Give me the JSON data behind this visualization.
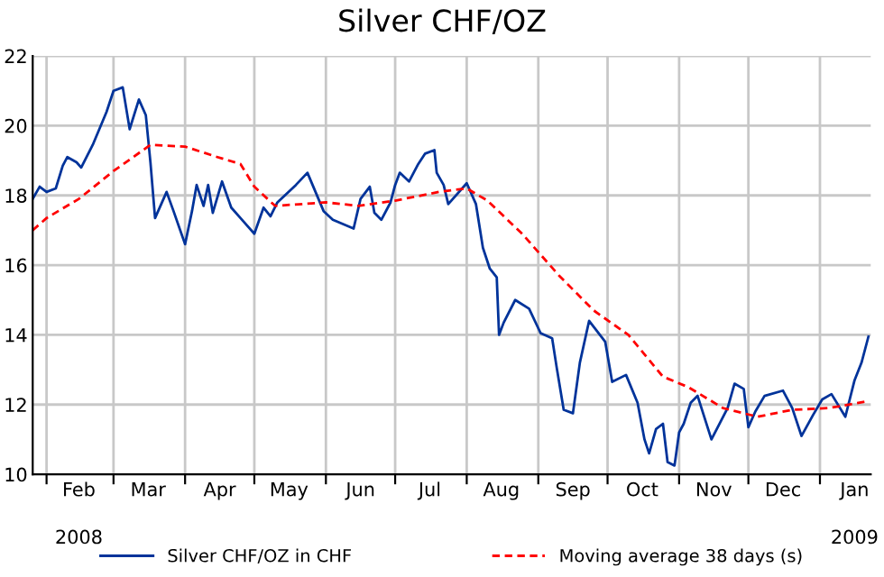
{
  "chart_data": {
    "type": "line",
    "title": "Silver CHF/OZ",
    "ylim": [
      10,
      22
    ],
    "yticks": [
      10,
      12,
      14,
      16,
      18,
      20,
      22
    ],
    "xlim": [
      "2008-01-26",
      "2009-01-23"
    ],
    "xticks": [
      {
        "value": "2008-02-01",
        "label": null
      },
      {
        "value": "2008-02-15",
        "label": "Feb"
      },
      {
        "value": "2008-03-01",
        "label": null
      },
      {
        "value": "2008-03-16",
        "label": "Mar"
      },
      {
        "value": "2008-04-01",
        "label": null
      },
      {
        "value": "2008-04-16",
        "label": "Apr"
      },
      {
        "value": "2008-05-01",
        "label": null
      },
      {
        "value": "2008-05-16",
        "label": "May"
      },
      {
        "value": "2008-06-01",
        "label": null
      },
      {
        "value": "2008-06-16",
        "label": "Jun"
      },
      {
        "value": "2008-07-01",
        "label": null
      },
      {
        "value": "2008-07-16",
        "label": "Jul"
      },
      {
        "value": "2008-08-01",
        "label": null
      },
      {
        "value": "2008-08-16",
        "label": "Aug"
      },
      {
        "value": "2008-09-01",
        "label": null
      },
      {
        "value": "2008-09-16",
        "label": "Sep"
      },
      {
        "value": "2008-10-01",
        "label": null
      },
      {
        "value": "2008-10-16",
        "label": "Oct"
      },
      {
        "value": "2008-11-01",
        "label": null
      },
      {
        "value": "2008-11-16",
        "label": "Nov"
      },
      {
        "value": "2008-12-01",
        "label": null
      },
      {
        "value": "2008-12-16",
        "label": "Dec"
      },
      {
        "value": "2009-01-01",
        "label": null
      },
      {
        "value": "2009-01-16",
        "label": "Jan"
      }
    ],
    "annotations": [
      "2008",
      "2009"
    ],
    "grid": true,
    "legend": "bottom",
    "series": [
      {
        "name": "Silver CHF/OZ in CHF",
        "color": "#00339a",
        "line_style": "solid",
        "x": [
          "2008-01-26",
          "2008-01-29",
          "2008-02-01",
          "2008-02-05",
          "2008-02-08",
          "2008-02-10",
          "2008-02-14",
          "2008-02-16",
          "2008-02-21",
          "2008-02-27",
          "2008-03-01",
          "2008-03-05",
          "2008-03-08",
          "2008-03-12",
          "2008-03-15",
          "2008-03-17",
          "2008-03-19",
          "2008-03-24",
          "2008-03-27",
          "2008-04-01",
          "2008-04-04",
          "2008-04-06",
          "2008-04-09",
          "2008-04-11",
          "2008-04-13",
          "2008-04-17",
          "2008-04-21",
          "2008-04-25",
          "2008-05-01",
          "2008-05-05",
          "2008-05-08",
          "2008-05-11",
          "2008-05-19",
          "2008-05-24",
          "2008-05-31",
          "2008-06-04",
          "2008-06-13",
          "2008-06-16",
          "2008-06-20",
          "2008-06-22",
          "2008-06-25",
          "2008-06-29",
          "2008-07-01",
          "2008-07-03",
          "2008-07-07",
          "2008-07-11",
          "2008-07-14",
          "2008-07-18",
          "2008-07-19",
          "2008-07-22",
          "2008-07-24",
          "2008-08-01",
          "2008-08-05",
          "2008-08-08",
          "2008-08-11",
          "2008-08-14",
          "2008-08-15",
          "2008-08-17",
          "2008-08-22",
          "2008-08-28",
          "2008-09-02",
          "2008-09-07",
          "2008-09-09",
          "2008-09-12",
          "2008-09-16",
          "2008-09-19",
          "2008-09-23",
          "2008-09-30",
          "2008-10-03",
          "2008-10-09",
          "2008-10-14",
          "2008-10-17",
          "2008-10-19",
          "2008-10-22",
          "2008-10-25",
          "2008-10-27",
          "2008-10-30",
          "2008-11-01",
          "2008-11-03",
          "2008-11-06",
          "2008-11-09",
          "2008-11-15",
          "2008-11-22",
          "2008-11-25",
          "2008-11-29",
          "2008-12-01",
          "2008-12-04",
          "2008-12-08",
          "2008-12-16",
          "2008-12-20",
          "2008-12-24",
          "2008-12-29",
          "2009-01-02",
          "2009-01-06",
          "2009-01-12",
          "2009-01-16",
          "2009-01-19",
          "2009-01-22"
        ],
        "values": [
          17.9,
          18.25,
          18.1,
          18.2,
          18.85,
          19.1,
          18.95,
          18.8,
          19.45,
          20.4,
          21.0,
          21.1,
          19.9,
          20.75,
          20.3,
          18.95,
          17.35,
          18.1,
          17.55,
          16.6,
          17.55,
          18.3,
          17.7,
          18.3,
          17.5,
          18.4,
          17.65,
          17.35,
          16.9,
          17.65,
          17.4,
          17.8,
          18.3,
          18.65,
          17.55,
          17.3,
          17.05,
          17.9,
          18.25,
          17.5,
          17.3,
          17.8,
          18.3,
          18.65,
          18.4,
          18.9,
          19.2,
          19.3,
          18.65,
          18.3,
          17.75,
          18.35,
          17.75,
          16.5,
          15.9,
          15.65,
          14.0,
          14.35,
          15.0,
          14.75,
          14.05,
          13.9,
          13.05,
          11.85,
          11.75,
          13.2,
          14.4,
          13.8,
          12.65,
          12.85,
          12.05,
          11.0,
          10.6,
          11.3,
          11.45,
          10.35,
          10.25,
          11.2,
          11.45,
          12.05,
          12.25,
          11.0,
          11.9,
          12.6,
          12.45,
          11.35,
          11.8,
          12.25,
          12.4,
          11.9,
          11.1,
          11.7,
          12.15,
          12.3,
          11.65,
          12.7,
          13.2,
          13.95
        ]
      },
      {
        "name": "Moving average 38 days (s)",
        "color": "#ff0000",
        "line_style": "dashed",
        "x": [
          "2008-01-26",
          "2008-02-01",
          "2008-02-15",
          "2008-03-01",
          "2008-03-17",
          "2008-04-01",
          "2008-04-15",
          "2008-04-25",
          "2008-05-01",
          "2008-05-10",
          "2008-06-01",
          "2008-06-15",
          "2008-07-01",
          "2008-07-20",
          "2008-08-01",
          "2008-08-10",
          "2008-08-25",
          "2008-09-10",
          "2008-09-25",
          "2008-10-10",
          "2008-10-25",
          "2008-11-05",
          "2008-11-20",
          "2008-12-05",
          "2008-12-20",
          "2009-01-05",
          "2009-01-22"
        ],
        "values": [
          17.0,
          17.35,
          17.9,
          18.7,
          19.45,
          19.4,
          19.1,
          18.9,
          18.25,
          17.7,
          17.8,
          17.7,
          17.85,
          18.1,
          18.2,
          17.85,
          16.9,
          15.7,
          14.7,
          14.0,
          12.8,
          12.5,
          11.9,
          11.65,
          11.85,
          11.9,
          12.1
        ]
      }
    ]
  }
}
